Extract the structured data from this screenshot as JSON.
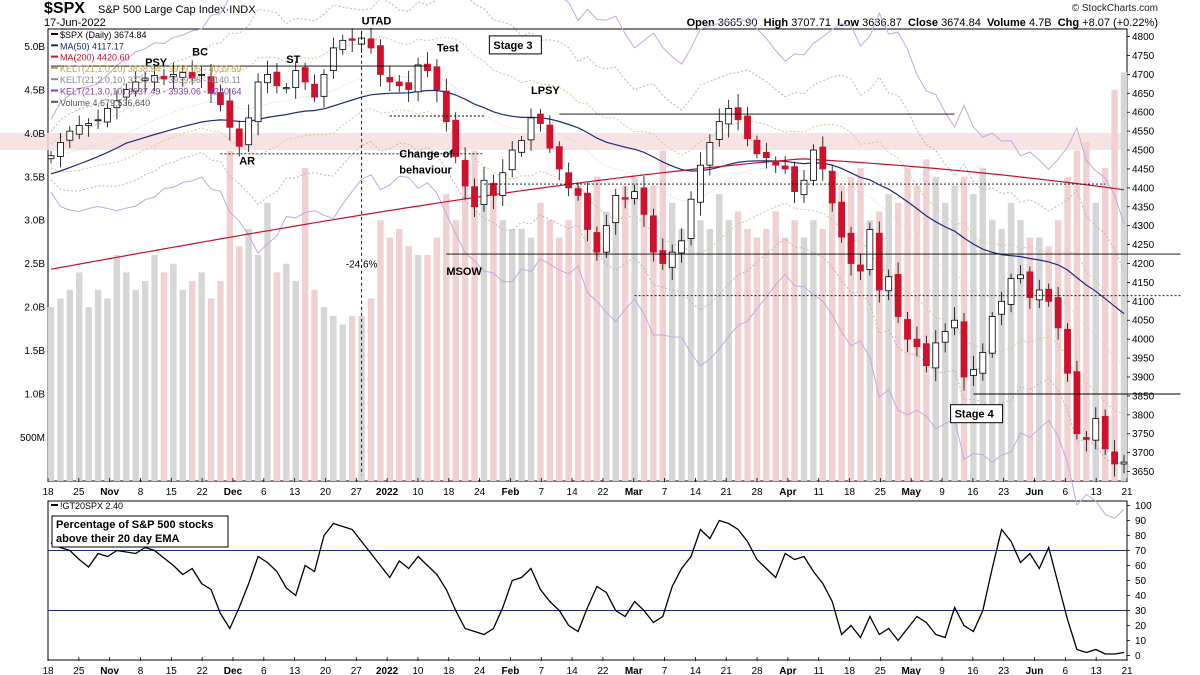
{
  "header": {
    "symbol": "$SPX",
    "name": "S&P 500 Large Cap Index·INDX",
    "date": "17-Jun-2022",
    "credit": "© StockCharts.com",
    "open_label": "Open",
    "open": "3665.90",
    "high_label": "High",
    "high": "3707.71",
    "low_label": "Low",
    "low": "3636.87",
    "close_label": "Close",
    "close": "3674.84",
    "volume_label": "Volume",
    "volume": "4.7B",
    "chg_label": "Chg",
    "chg": "+8.07 (+0.22%)"
  },
  "legend": [
    {
      "text": "$SPX (Daily) 3674.84",
      "color": "#000000"
    },
    {
      "text": "MA(50) 4117.17",
      "color": "#1f2a7a"
    },
    {
      "text": "MA(200) 4420.60",
      "color": "#c4122f"
    },
    {
      "text": "KELT(21,1.0,10) 3838.54 - 3939.06 - 4039.59",
      "color": "#c8a24a"
    },
    {
      "text": "KELT(21,2.0,10) 3738.02 - 3939.06 - 4140.11",
      "color": "#888888"
    },
    {
      "text": "KELT(21,3.0,10) 3637.49 - 3939.06 - 4240.64",
      "color": "#8a3aa8"
    },
    {
      "text": "Volume 4,679,536,640",
      "color": "#555555"
    }
  ],
  "indicator_legend": "!GT20SPX 2.40",
  "indicator_title": "Percentage of S&P 500 stocks above their 20 day EMA",
  "annotations": [
    {
      "text": "PSY",
      "date_index": 10,
      "price": 4722
    },
    {
      "text": "BC",
      "date_index": 15,
      "price": 4750
    },
    {
      "text": "AR",
      "date_index": 20,
      "price": 4462
    },
    {
      "text": "ST",
      "date_index": 25,
      "price": 4730
    },
    {
      "text": "UTAD",
      "date_index": 33,
      "price": 4832
    },
    {
      "text": "Test",
      "date_index": 41,
      "price": 4760
    },
    {
      "text": "Stage 3",
      "date_index": 47,
      "price": 4770
    },
    {
      "text": "LPSY",
      "date_index": 51,
      "price": 4648
    },
    {
      "text": "Change of",
      "date_index": 37,
      "price": 4480
    },
    {
      "text": "behaviour",
      "date_index": 37,
      "price": 4438
    },
    {
      "text": "-24.6%",
      "date_index": 33,
      "price": 4190
    },
    {
      "text": "MSOW",
      "date_index": 42,
      "price": 4170
    },
    {
      "text": "Stage 4",
      "date_index": 96,
      "price": 3795
    }
  ],
  "chart_data": [
    {
      "type": "candlestick",
      "title": "$SPX (Daily)",
      "x_tick_labels": [
        "18",
        "25",
        "Nov",
        "8",
        "15",
        "22",
        "Dec",
        "6",
        "13",
        "20",
        "27",
        "2022",
        "10",
        "18",
        "24",
        "Feb",
        "7",
        "14",
        "22",
        "Mar",
        "7",
        "14",
        "21",
        "28",
        "Apr",
        "11",
        "18",
        "25",
        "May",
        "9",
        "16",
        "23",
        "Jun",
        "6",
        "13",
        "21"
      ],
      "y_tick_labels": [
        "3650",
        "3700",
        "3750",
        "3800",
        "3850",
        "3900",
        "3950",
        "4000",
        "4050",
        "4100",
        "4150",
        "4200",
        "4250",
        "4300",
        "4350",
        "4400",
        "4450",
        "4500",
        "4550",
        "4600",
        "4650",
        "4700",
        "4750",
        "4800"
      ],
      "ylim": [
        3625,
        4820
      ],
      "volume_tick_labels": [
        "500M",
        "1.0B",
        "1.5B",
        "2.0B",
        "2.5B",
        "3.0B",
        "3.5B",
        "4.0B",
        "4.5B",
        "5.0B"
      ],
      "volume_ylim": [
        0,
        5.2
      ],
      "resistance_zone": [
        4500,
        4545
      ],
      "close": [
        4485,
        4520,
        4550,
        4565,
        4570,
        4580,
        4610,
        4630,
        4660,
        4680,
        4690,
        4697,
        4688,
        4700,
        4705,
        4690,
        4700,
        4650,
        4620,
        4560,
        4510,
        4585,
        4680,
        4700,
        4670,
        4665,
        4710,
        4680,
        4640,
        4700,
        4770,
        4790,
        4790,
        4796,
        4770,
        4700,
        4680,
        4670,
        4660,
        4725,
        4710,
        4660,
        4575,
        4483,
        4405,
        4350,
        4420,
        4380,
        4440,
        4500,
        4525,
        4585,
        4570,
        4505,
        4450,
        4400,
        4380,
        4290,
        4230,
        4300,
        4380,
        4370,
        4390,
        4330,
        4230,
        4200,
        4230,
        4260,
        4370,
        4460,
        4520,
        4575,
        4610,
        4580,
        4530,
        4490,
        4480,
        4460,
        4450,
        4390,
        4420,
        4500,
        4450,
        4360,
        4270,
        4200,
        4180,
        4290,
        4130,
        4165,
        4060,
        4000,
        3980,
        3930,
        3990,
        4020,
        4050,
        3900,
        3920,
        3965,
        4060,
        4100,
        4160,
        4170,
        4110,
        4130,
        4100,
        4030,
        3910,
        3750,
        3735,
        3790,
        3710,
        3670,
        3675
      ],
      "volume": [
        2.0,
        2.1,
        2.2,
        2.4,
        2.0,
        2.2,
        2.1,
        2.6,
        2.4,
        2.2,
        2.3,
        2.6,
        2.4,
        2.5,
        2.2,
        2.3,
        2.4,
        2.1,
        2.3,
        3.8,
        2.7,
        2.9,
        2.6,
        3.2,
        2.4,
        2.5,
        2.3,
        3.6,
        2.2,
        2.0,
        1.9,
        1.8,
        1.9,
        1.9,
        2.1,
        3.0,
        2.8,
        2.9,
        2.7,
        2.6,
        2.6,
        2.8,
        3.3,
        3.0,
        3.6,
        3.8,
        3.3,
        3.4,
        3.0,
        2.9,
        2.9,
        2.8,
        3.2,
        3.0,
        2.8,
        3.0,
        3.4,
        3.1,
        3.5,
        3.1,
        3.0,
        3.4,
        3.5,
        3.2,
        3.4,
        3.8,
        3.2,
        2.9,
        2.9,
        3.0,
        2.9,
        3.3,
        3.0,
        3.1,
        2.9,
        2.8,
        2.9,
        3.1,
        2.8,
        3.0,
        2.8,
        3.0,
        2.9,
        3.3,
        3.4,
        3.5,
        3.6,
        3.0,
        3.1,
        3.3,
        3.2,
        3.6,
        3.4,
        3.7,
        3.5,
        3.2,
        3.4,
        3.5,
        3.3,
        3.6,
        3.0,
        2.9,
        3.2,
        3.0,
        2.8,
        2.8,
        2.7,
        3.0,
        3.5,
        3.8,
        3.9,
        3.2,
        3.6,
        4.5,
        4.7
      ]
    },
    {
      "type": "line",
      "title": "!GT20SPX",
      "x_tick_labels": [
        "18",
        "25",
        "Nov",
        "8",
        "15",
        "22",
        "Dec",
        "6",
        "13",
        "20",
        "27",
        "2022",
        "10",
        "18",
        "24",
        "Feb",
        "7",
        "14",
        "22",
        "Mar",
        "7",
        "14",
        "21",
        "28",
        "Apr",
        "11",
        "18",
        "25",
        "May",
        "9",
        "16",
        "23",
        "Jun",
        "6",
        "13",
        "21"
      ],
      "y_tick_labels": [
        "0",
        "10",
        "20",
        "30",
        "40",
        "50",
        "60",
        "70",
        "80",
        "90",
        "100"
      ],
      "ylim": [
        -3,
        103
      ],
      "reference_lines": [
        30,
        70
      ],
      "values": [
        75,
        72,
        70,
        64,
        59,
        68,
        66,
        70,
        69,
        68,
        72,
        70,
        65,
        60,
        54,
        58,
        48,
        44,
        28,
        18,
        32,
        48,
        66,
        62,
        56,
        45,
        40,
        60,
        56,
        80,
        88,
        86,
        84,
        76,
        68,
        60,
        52,
        63,
        58,
        66,
        60,
        54,
        44,
        30,
        18,
        16,
        14,
        18,
        32,
        50,
        52,
        58,
        44,
        36,
        30,
        20,
        16,
        32,
        46,
        42,
        30,
        26,
        36,
        30,
        22,
        26,
        46,
        58,
        66,
        84,
        78,
        90,
        88,
        84,
        76,
        64,
        58,
        52,
        68,
        64,
        66,
        56,
        48,
        36,
        14,
        20,
        12,
        26,
        14,
        18,
        10,
        18,
        26,
        22,
        14,
        12,
        32,
        20,
        16,
        30,
        58,
        84,
        76,
        62,
        68,
        58,
        72,
        48,
        24,
        4,
        2,
        4,
        1,
        1,
        2
      ]
    }
  ]
}
